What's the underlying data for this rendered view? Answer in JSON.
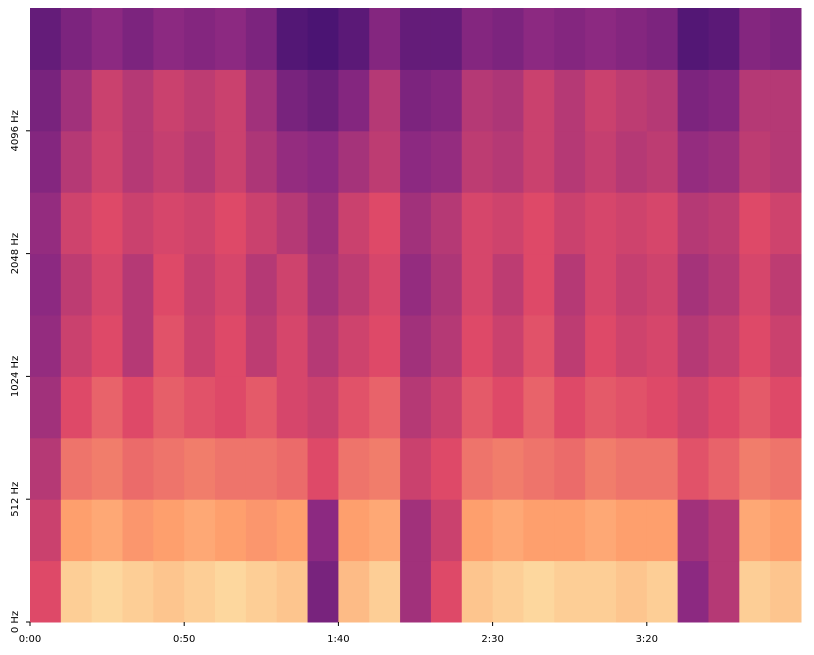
{
  "chart_data": {
    "type": "heatmap",
    "xlim": [
      0,
      250
    ],
    "xticks": [
      {
        "value": 0,
        "label": "0:00"
      },
      {
        "value": 50,
        "label": "0:50"
      },
      {
        "value": 100,
        "label": "1:40"
      },
      {
        "value": 150,
        "label": "2:30"
      },
      {
        "value": 200,
        "label": "3:20"
      }
    ],
    "ylim": [
      0,
      8192
    ],
    "yscale": "symlog",
    "linthresh": 512,
    "yticks": [
      {
        "value": 0,
        "label": "0 Hz"
      },
      {
        "value": 512,
        "label": "512 Hz"
      },
      {
        "value": 1024,
        "label": "1024 Hz"
      },
      {
        "value": 2048,
        "label": "2048 Hz"
      },
      {
        "value": 4096,
        "label": "4096 Hz"
      }
    ],
    "colormap": [
      "#000004",
      "#3b0f70",
      "#8c2981",
      "#de4968",
      "#fe9f6d",
      "#fcfdbf"
    ],
    "values": [
      [
        0.6,
        0.9,
        0.92,
        0.9,
        0.88,
        0.9,
        0.92,
        0.9,
        0.88,
        0.35,
        0.86,
        0.9,
        0.45,
        0.6,
        0.88,
        0.9,
        0.92,
        0.9,
        0.9,
        0.88,
        0.9,
        0.4,
        0.5,
        0.9,
        0.88
      ],
      [
        0.55,
        0.8,
        0.82,
        0.78,
        0.8,
        0.82,
        0.8,
        0.78,
        0.8,
        0.4,
        0.8,
        0.82,
        0.45,
        0.55,
        0.8,
        0.82,
        0.8,
        0.8,
        0.82,
        0.8,
        0.8,
        0.45,
        0.5,
        0.82,
        0.8
      ],
      [
        0.5,
        0.7,
        0.72,
        0.68,
        0.7,
        0.72,
        0.7,
        0.7,
        0.68,
        0.6,
        0.7,
        0.72,
        0.55,
        0.6,
        0.7,
        0.72,
        0.7,
        0.68,
        0.72,
        0.7,
        0.7,
        0.62,
        0.66,
        0.72,
        0.7
      ],
      [
        0.45,
        0.6,
        0.66,
        0.6,
        0.65,
        0.62,
        0.6,
        0.64,
        0.58,
        0.55,
        0.62,
        0.66,
        0.5,
        0.55,
        0.64,
        0.6,
        0.66,
        0.6,
        0.64,
        0.62,
        0.6,
        0.56,
        0.6,
        0.64,
        0.6
      ],
      [
        0.42,
        0.55,
        0.6,
        0.5,
        0.62,
        0.55,
        0.6,
        0.52,
        0.58,
        0.5,
        0.56,
        0.6,
        0.45,
        0.5,
        0.6,
        0.55,
        0.62,
        0.52,
        0.6,
        0.56,
        0.58,
        0.5,
        0.54,
        0.6,
        0.55
      ],
      [
        0.4,
        0.52,
        0.58,
        0.5,
        0.6,
        0.54,
        0.58,
        0.5,
        0.56,
        0.46,
        0.52,
        0.58,
        0.42,
        0.48,
        0.58,
        0.52,
        0.6,
        0.5,
        0.58,
        0.54,
        0.56,
        0.46,
        0.5,
        0.58,
        0.52
      ],
      [
        0.42,
        0.56,
        0.6,
        0.55,
        0.58,
        0.56,
        0.6,
        0.55,
        0.5,
        0.44,
        0.55,
        0.6,
        0.45,
        0.5,
        0.58,
        0.56,
        0.6,
        0.55,
        0.58,
        0.56,
        0.58,
        0.5,
        0.52,
        0.6,
        0.56
      ],
      [
        0.38,
        0.5,
        0.56,
        0.5,
        0.54,
        0.5,
        0.55,
        0.48,
        0.42,
        0.4,
        0.46,
        0.52,
        0.4,
        0.42,
        0.52,
        0.5,
        0.55,
        0.5,
        0.54,
        0.5,
        0.52,
        0.42,
        0.44,
        0.52,
        0.5
      ],
      [
        0.35,
        0.45,
        0.55,
        0.5,
        0.55,
        0.52,
        0.55,
        0.45,
        0.35,
        0.32,
        0.38,
        0.5,
        0.36,
        0.38,
        0.5,
        0.48,
        0.55,
        0.5,
        0.55,
        0.52,
        0.5,
        0.36,
        0.38,
        0.5,
        0.5
      ],
      [
        0.3,
        0.36,
        0.4,
        0.36,
        0.4,
        0.38,
        0.4,
        0.36,
        0.26,
        0.24,
        0.28,
        0.38,
        0.3,
        0.3,
        0.38,
        0.36,
        0.4,
        0.38,
        0.4,
        0.38,
        0.36,
        0.26,
        0.28,
        0.38,
        0.36
      ]
    ]
  }
}
